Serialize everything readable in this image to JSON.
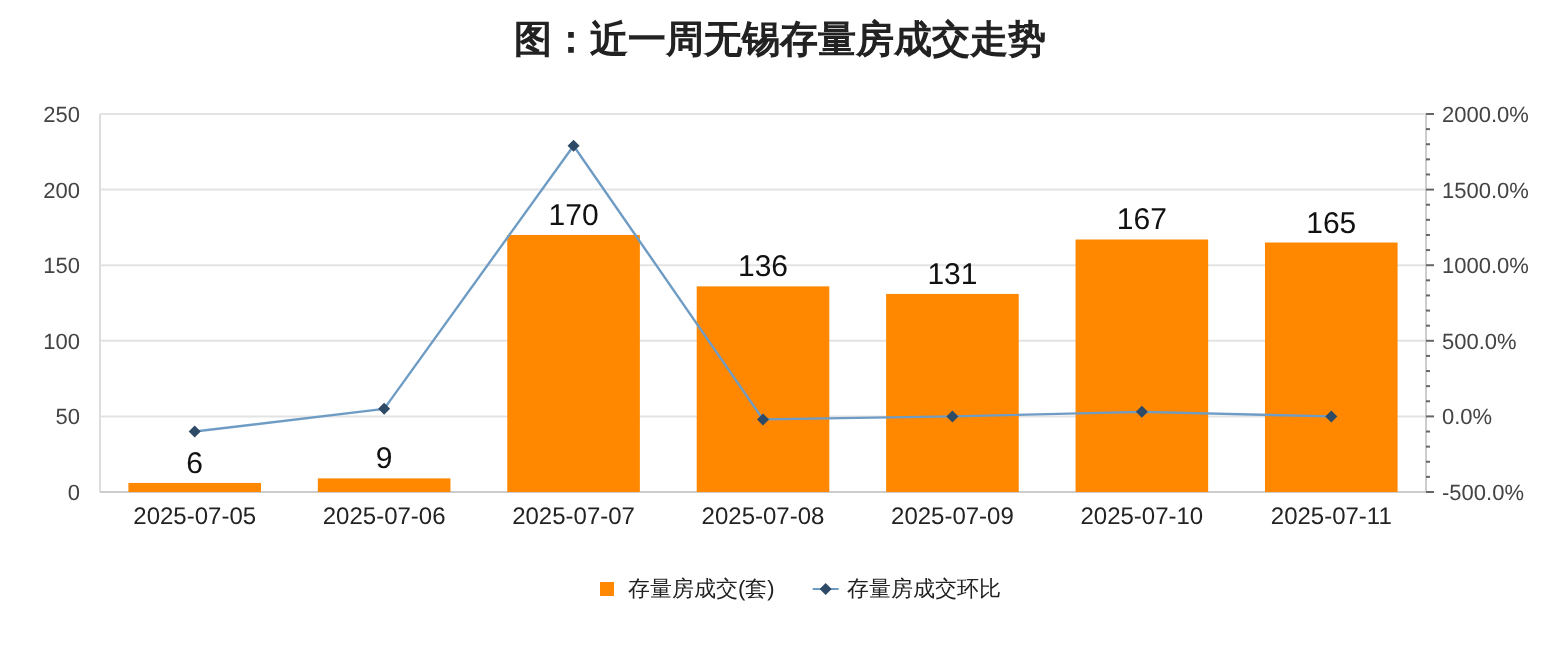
{
  "chart_data": {
    "type": "bar",
    "title": "图：近一周无锡存量房成交走势",
    "categories": [
      "2025-07-05",
      "2025-07-06",
      "2025-07-07",
      "2025-07-08",
      "2025-07-09",
      "2025-07-10",
      "2025-07-11"
    ],
    "series": [
      {
        "name": "存量房成交(套)",
        "color": "#ff8800",
        "values": [
          6,
          9,
          170,
          136,
          131,
          167,
          165
        ],
        "value_labels": [
          "6",
          "9",
          "170",
          "136",
          "131",
          "167",
          "165"
        ]
      },
      {
        "name": "存量房成交环比",
        "type": "line",
        "axis": "y2",
        "color": "#6f9cc4",
        "marker": "diamond",
        "values": [
          -100,
          50,
          1790,
          -20,
          0,
          30,
          0
        ]
      }
    ],
    "ylim": [
      0,
      250
    ],
    "yticks": [
      0,
      50,
      100,
      150,
      200,
      250
    ],
    "y2lim": [
      -500,
      2000
    ],
    "y2ticks": [
      {
        "value": -500,
        "label": "-500.0%"
      },
      {
        "value": -400,
        "label": null
      },
      {
        "value": -300,
        "label": null
      },
      {
        "value": -200,
        "label": null
      },
      {
        "value": -100,
        "label": null
      },
      {
        "value": 0,
        "label": "0.0%"
      },
      {
        "value": 100,
        "label": null
      },
      {
        "value": 200,
        "label": null
      },
      {
        "value": 300,
        "label": null
      },
      {
        "value": 400,
        "label": null
      },
      {
        "value": 500,
        "label": "500.0%"
      },
      {
        "value": 600,
        "label": null
      },
      {
        "value": 700,
        "label": null
      },
      {
        "value": 800,
        "label": null
      },
      {
        "value": 900,
        "label": null
      },
      {
        "value": 1000,
        "label": "1000.0%"
      },
      {
        "value": 1100,
        "label": null
      },
      {
        "value": 1200,
        "label": null
      },
      {
        "value": 1300,
        "label": null
      },
      {
        "value": 1400,
        "label": null
      },
      {
        "value": 1500,
        "label": "1500.0%"
      },
      {
        "value": 1600,
        "label": null
      },
      {
        "value": 1700,
        "label": null
      },
      {
        "value": 1800,
        "label": null
      },
      {
        "value": 1900,
        "label": null
      },
      {
        "value": 2000,
        "label": "2000.0%"
      }
    ],
    "grid": "y",
    "legend": "bottom"
  }
}
